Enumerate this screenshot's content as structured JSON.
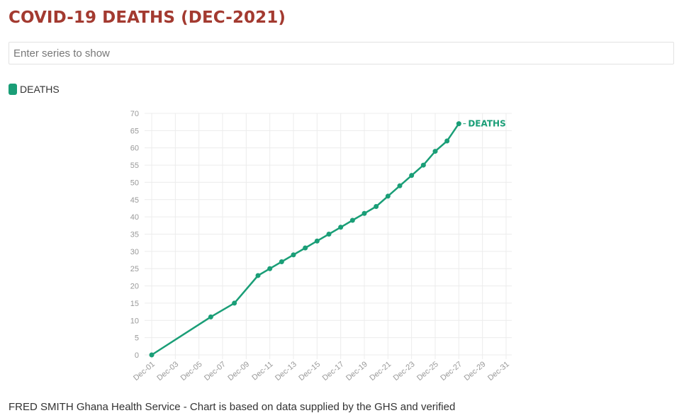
{
  "header": {
    "title": "COVID-19 DEATHS (DEC-2021)"
  },
  "search": {
    "placeholder": "Enter series to show",
    "value": ""
  },
  "legend": {
    "label": "DEATHS",
    "color": "#1a9e77"
  },
  "footer": {
    "text": "FRED SMITH Ghana Health Service - Chart is based on data supplied by the GHS and verified"
  },
  "colors": {
    "title": "#a33a30",
    "series": "#1a9e77",
    "grid": "#ececec",
    "tick_text": "#999999"
  },
  "chart_data": {
    "type": "line",
    "title": "",
    "xlabel": "",
    "ylabel": "",
    "ylim": [
      0,
      70
    ],
    "yticks": [
      0,
      5,
      10,
      15,
      20,
      25,
      30,
      35,
      40,
      45,
      50,
      55,
      60,
      65,
      70
    ],
    "xlim": [
      1,
      31
    ],
    "xticks": [
      "Dec-01",
      "Dec-03",
      "Dec-05",
      "Dec-07",
      "Dec-09",
      "Dec-11",
      "Dec-13",
      "Dec-15",
      "Dec-17",
      "Dec-19",
      "Dec-21",
      "Dec-23",
      "Dec-25",
      "Dec-27",
      "Dec-29",
      "Dec-31"
    ],
    "grid": true,
    "series": [
      {
        "name": "DEATHS",
        "end_label": "DEATHS",
        "x": [
          "Dec-01",
          "Dec-06",
          "Dec-08",
          "Dec-10",
          "Dec-11",
          "Dec-12",
          "Dec-13",
          "Dec-14",
          "Dec-15",
          "Dec-16",
          "Dec-17",
          "Dec-18",
          "Dec-19",
          "Dec-20",
          "Dec-21",
          "Dec-22",
          "Dec-23",
          "Dec-24",
          "Dec-25",
          "Dec-26",
          "Dec-27"
        ],
        "values": [
          0,
          11,
          15,
          23,
          25,
          27,
          29,
          31,
          33,
          35,
          37,
          39,
          41,
          43,
          46,
          49,
          52,
          55,
          59,
          62,
          67
        ]
      }
    ]
  }
}
